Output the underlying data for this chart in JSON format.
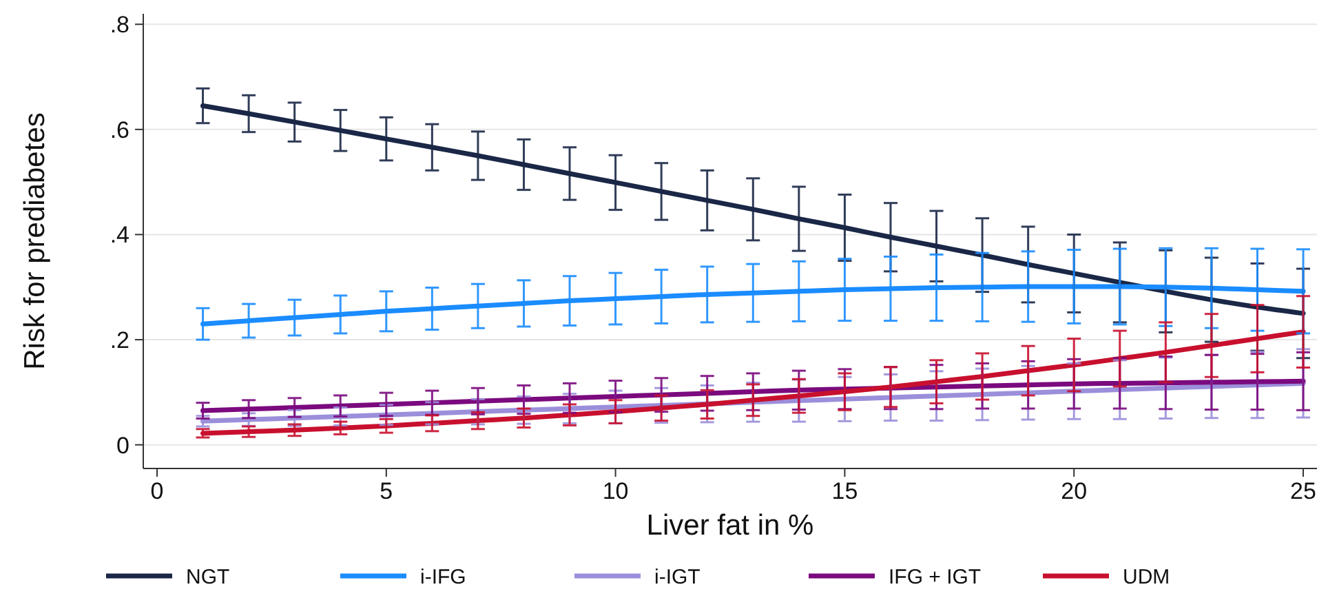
{
  "chart_data": {
    "type": "line",
    "xlabel": "Liver fat in %",
    "ylabel": "Risk for prediabetes",
    "x": [
      1,
      2,
      3,
      4,
      5,
      6,
      7,
      8,
      9,
      10,
      11,
      12,
      13,
      14,
      15,
      16,
      17,
      18,
      19,
      20,
      21,
      22,
      23,
      24,
      25
    ],
    "xlim": [
      -0.3,
      25.3
    ],
    "xticks": [
      0,
      5,
      10,
      15,
      20,
      25
    ],
    "ylim": [
      -0.045,
      0.82
    ],
    "yticks": [
      {
        "value": 0,
        "label": "0"
      },
      {
        "value": 0.2,
        "label": ".2"
      },
      {
        "value": 0.4,
        "label": ".4"
      },
      {
        "value": 0.6,
        "label": ".6"
      },
      {
        "value": 0.8,
        "label": ".8"
      }
    ],
    "grid": "y",
    "legend": "bottom",
    "marker": "none",
    "line_style": "solid",
    "series": [
      {
        "name": "NGT",
        "color": "#1a2746",
        "values": [
          0.645,
          0.63,
          0.614,
          0.598,
          0.582,
          0.566,
          0.55,
          0.533,
          0.516,
          0.499,
          0.482,
          0.465,
          0.448,
          0.43,
          0.413,
          0.395,
          0.378,
          0.361,
          0.343,
          0.326,
          0.309,
          0.292,
          0.276,
          0.262,
          0.25
        ],
        "errors": [
          0.033,
          0.035,
          0.037,
          0.039,
          0.041,
          0.044,
          0.046,
          0.048,
          0.05,
          0.052,
          0.054,
          0.057,
          0.059,
          0.061,
          0.063,
          0.065,
          0.067,
          0.07,
          0.072,
          0.074,
          0.076,
          0.078,
          0.08,
          0.083,
          0.085
        ]
      },
      {
        "name": "i-IFG",
        "color": "#1a8cff",
        "values": [
          0.23,
          0.236,
          0.242,
          0.248,
          0.254,
          0.259,
          0.264,
          0.269,
          0.274,
          0.278,
          0.282,
          0.286,
          0.289,
          0.292,
          0.295,
          0.297,
          0.299,
          0.3,
          0.301,
          0.301,
          0.301,
          0.3,
          0.298,
          0.295,
          0.292
        ],
        "errors": [
          0.03,
          0.032,
          0.034,
          0.036,
          0.038,
          0.04,
          0.042,
          0.044,
          0.047,
          0.049,
          0.051,
          0.053,
          0.055,
          0.057,
          0.059,
          0.061,
          0.063,
          0.065,
          0.067,
          0.07,
          0.072,
          0.074,
          0.076,
          0.078,
          0.08
        ]
      },
      {
        "name": "i-IGT",
        "color": "#9b8fdb",
        "values": [
          0.045,
          0.048,
          0.051,
          0.054,
          0.057,
          0.06,
          0.063,
          0.066,
          0.069,
          0.072,
          0.075,
          0.078,
          0.081,
          0.084,
          0.087,
          0.09,
          0.093,
          0.096,
          0.099,
          0.102,
          0.105,
          0.108,
          0.111,
          0.114,
          0.117
        ],
        "errors": [
          0.01,
          0.012,
          0.015,
          0.017,
          0.019,
          0.021,
          0.024,
          0.026,
          0.028,
          0.031,
          0.033,
          0.035,
          0.037,
          0.04,
          0.042,
          0.044,
          0.047,
          0.049,
          0.051,
          0.053,
          0.056,
          0.058,
          0.06,
          0.063,
          0.065
        ]
      },
      {
        "name": "IFG + IGT",
        "color": "#7b0a7e",
        "values": [
          0.065,
          0.068,
          0.071,
          0.074,
          0.077,
          0.08,
          0.083,
          0.086,
          0.089,
          0.092,
          0.095,
          0.098,
          0.101,
          0.104,
          0.106,
          0.108,
          0.11,
          0.112,
          0.114,
          0.116,
          0.117,
          0.118,
          0.119,
          0.12,
          0.121
        ],
        "errors": [
          0.015,
          0.017,
          0.018,
          0.02,
          0.022,
          0.023,
          0.025,
          0.027,
          0.028,
          0.03,
          0.032,
          0.033,
          0.035,
          0.037,
          0.038,
          0.04,
          0.042,
          0.043,
          0.045,
          0.047,
          0.048,
          0.05,
          0.052,
          0.053,
          0.055
        ]
      },
      {
        "name": "UDM",
        "color": "#c8102e",
        "values": [
          0.022,
          0.025,
          0.028,
          0.032,
          0.036,
          0.041,
          0.046,
          0.051,
          0.057,
          0.063,
          0.07,
          0.077,
          0.085,
          0.093,
          0.101,
          0.11,
          0.12,
          0.13,
          0.141,
          0.152,
          0.164,
          0.176,
          0.189,
          0.202,
          0.215
        ],
        "errors": [
          0.008,
          0.01,
          0.011,
          0.012,
          0.013,
          0.015,
          0.016,
          0.018,
          0.02,
          0.022,
          0.024,
          0.027,
          0.03,
          0.032,
          0.035,
          0.038,
          0.041,
          0.044,
          0.047,
          0.05,
          0.053,
          0.057,
          0.06,
          0.064,
          0.068
        ]
      }
    ]
  }
}
